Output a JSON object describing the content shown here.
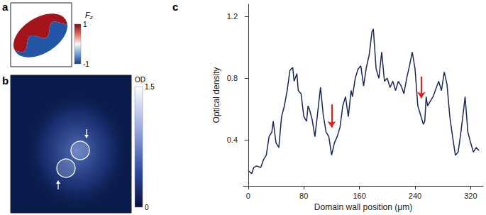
{
  "chart_data": {
    "type": "line",
    "title": "c",
    "xlabel": "Domain wall position (μm)",
    "ylabel": "Optical density",
    "x": [
      0,
      5,
      8,
      12,
      18,
      22,
      26,
      30,
      34,
      36,
      40,
      44,
      48,
      52,
      56,
      60,
      64,
      66,
      70,
      72,
      76,
      80,
      84,
      86,
      88,
      92,
      96,
      100,
      104,
      108,
      112,
      116,
      120,
      124,
      128,
      132,
      136,
      140,
      144,
      148,
      150,
      154,
      158,
      162,
      166,
      170,
      174,
      178,
      180,
      184,
      188,
      192,
      196,
      200,
      204,
      208,
      212,
      216,
      220,
      224,
      228,
      232,
      236,
      240,
      244,
      248,
      252,
      254,
      256,
      258,
      262,
      266,
      270,
      274,
      278,
      282,
      286,
      290,
      294,
      298,
      302,
      306,
      310,
      312,
      316,
      320,
      324,
      328,
      332
    ],
    "values": [
      0.2,
      0.18,
      0.22,
      0.23,
      0.22,
      0.27,
      0.3,
      0.42,
      0.45,
      0.52,
      0.38,
      0.35,
      0.55,
      0.62,
      0.72,
      0.85,
      0.87,
      0.78,
      0.83,
      0.72,
      0.7,
      0.55,
      0.52,
      0.62,
      0.6,
      0.53,
      0.42,
      0.58,
      0.74,
      0.56,
      0.45,
      0.42,
      0.3,
      0.38,
      0.42,
      0.48,
      0.62,
      0.68,
      0.55,
      0.72,
      0.68,
      0.8,
      0.86,
      0.88,
      0.75,
      0.87,
      0.95,
      1.1,
      1.12,
      0.86,
      0.8,
      0.97,
      0.78,
      0.8,
      0.74,
      0.78,
      0.72,
      0.78,
      0.75,
      0.7,
      0.8,
      0.88,
      0.97,
      0.86,
      0.62,
      0.56,
      0.5,
      0.52,
      0.68,
      0.62,
      0.65,
      0.68,
      0.73,
      0.78,
      0.72,
      0.84,
      0.76,
      0.55,
      0.42,
      0.3,
      0.32,
      0.45,
      0.6,
      0.68,
      0.45,
      0.38,
      0.32,
      0.35,
      0.33
    ],
    "color": "#1b2759",
    "xlim": [
      -7,
      338
    ],
    "ylim": [
      0.1,
      1.28
    ],
    "xticks": [
      0,
      80,
      160,
      240,
      320
    ],
    "yticks": [
      0.4,
      0.8,
      1.2
    ],
    "grid": false,
    "annotations": [
      {
        "x": 120,
        "y_from": 0.63,
        "y_to": 0.48,
        "color": "#e0201b"
      },
      {
        "x": 249,
        "y_from": 0.81,
        "y_to": 0.67,
        "color": "#e0201b"
      }
    ]
  },
  "images": [
    {
      "label": "a",
      "colorbar": {
        "title": "Fz",
        "range": [
          -1,
          1
        ],
        "ticks": [
          1,
          -1
        ]
      }
    },
    {
      "label": "b",
      "colorbar": {
        "title": "OD",
        "range": [
          0,
          1.5
        ],
        "ticks": [
          1.5,
          0
        ]
      }
    }
  ]
}
